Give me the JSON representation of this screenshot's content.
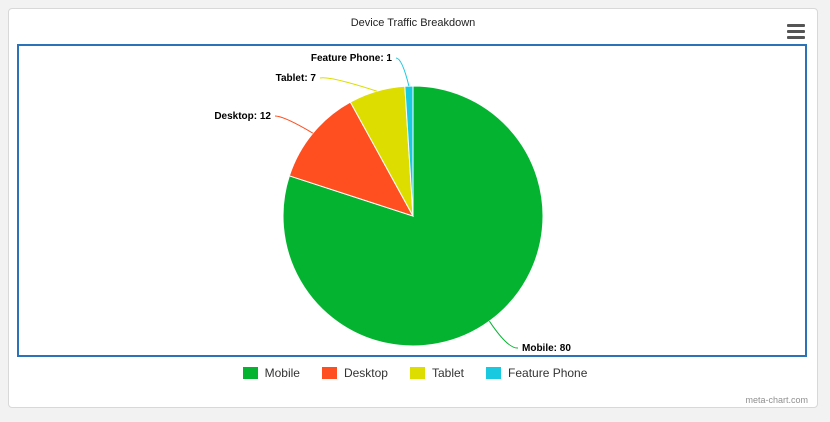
{
  "chart_data": {
    "type": "pie",
    "title": "Device Traffic Breakdown",
    "slices": [
      {
        "label": "Mobile",
        "value": 80,
        "color": "#04b431",
        "data_label": "Mobile: 80"
      },
      {
        "label": "Desktop",
        "value": 12,
        "color": "#ff4e1f",
        "data_label": "Desktop: 12"
      },
      {
        "label": "Tablet",
        "value": 7,
        "color": "#dddd00",
        "data_label": "Tablet: 7"
      },
      {
        "label": "Feature Phone",
        "value": 1,
        "color": "#18c9e0",
        "data_label": "Feature Phone: 1"
      }
    ],
    "legend_position": "bottom"
  },
  "menu": {
    "icon": "hamburger-menu-icon"
  },
  "credits": {
    "text": "meta-chart.com"
  }
}
